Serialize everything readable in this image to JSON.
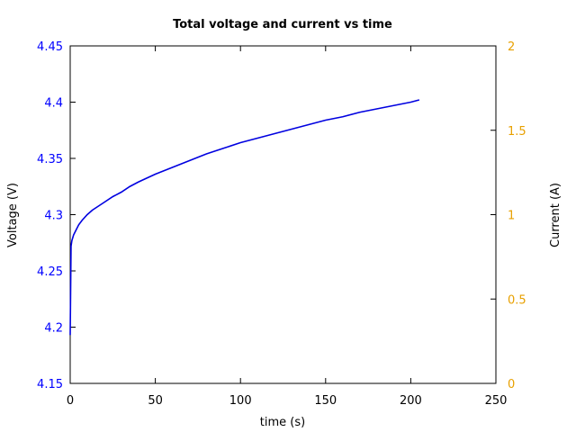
{
  "chart_data": {
    "type": "line",
    "title": "Total voltage and current vs time",
    "xlabel": "time (s)",
    "ylabel": "Voltage (V)",
    "y2label": "Current (A)",
    "xlim": [
      0,
      250
    ],
    "ylim": [
      4.15,
      4.45
    ],
    "y2lim": [
      0,
      2
    ],
    "xticks": [
      "0",
      "50",
      "100",
      "150",
      "200",
      "250"
    ],
    "yticks": [
      "4.15",
      "4.2",
      "4.25",
      "4.3",
      "4.35",
      "4.4",
      "4.45"
    ],
    "y2ticks": [
      "0",
      "0.5",
      "1",
      "1.5",
      "2"
    ],
    "grid": false,
    "colors": {
      "voltage": "#0000e0",
      "left_axis": "#0000ff",
      "right_axis": "#e8a000",
      "frame": "#000000"
    },
    "series": [
      {
        "axis": "left",
        "x": [
          0,
          0.5,
          1,
          2,
          3,
          5,
          7,
          10,
          13,
          17,
          20,
          25,
          30,
          35,
          40,
          50,
          55,
          60,
          70,
          80,
          90,
          100,
          110,
          120,
          130,
          140,
          150,
          160,
          170,
          180,
          190,
          200,
          205
        ],
        "values": [
          4.193,
          4.272,
          4.277,
          4.282,
          4.285,
          4.291,
          4.295,
          4.3,
          4.304,
          4.308,
          4.311,
          4.316,
          4.32,
          4.325,
          4.329,
          4.336,
          4.339,
          4.342,
          4.348,
          4.354,
          4.359,
          4.364,
          4.368,
          4.372,
          4.376,
          4.38,
          4.384,
          4.387,
          4.391,
          4.394,
          4.397,
          4.4,
          4.402
        ]
      }
    ]
  }
}
